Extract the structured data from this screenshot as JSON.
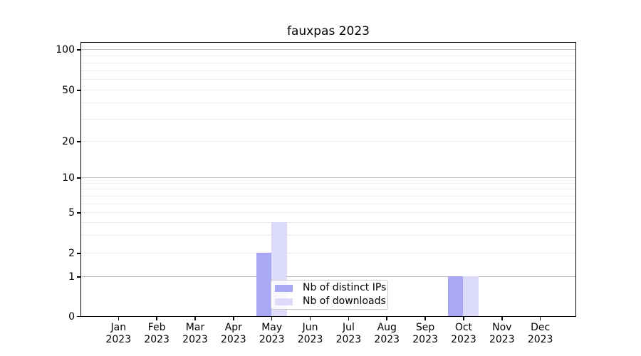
{
  "title": "fauxpas 2023",
  "chart_data": {
    "type": "bar",
    "title": "fauxpas 2023",
    "xlabel": "",
    "ylabel": "",
    "yscale": "symlog-like",
    "grid": "horizontal",
    "legend_position": "inside lower center",
    "categories": [
      "Jan 2023",
      "Feb 2023",
      "Mar 2023",
      "Apr 2023",
      "May 2023",
      "Jun 2023",
      "Jul 2023",
      "Aug 2023",
      "Sep 2023",
      "Oct 2023",
      "Nov 2023",
      "Dec 2023"
    ],
    "x_tick_months": [
      "Jan",
      "Feb",
      "Mar",
      "Apr",
      "May",
      "Jun",
      "Jul",
      "Aug",
      "Sep",
      "Oct",
      "Nov",
      "Dec"
    ],
    "x_tick_year": "2023",
    "series": [
      {
        "name": "Nb of distinct IPs",
        "color": "#a8a8f4",
        "values": [
          0,
          0,
          0,
          0,
          2,
          0,
          0,
          0,
          0,
          1,
          0,
          0
        ]
      },
      {
        "name": "Nb of downloads",
        "color": "#dcdcfa",
        "values": [
          0,
          0,
          0,
          0,
          4,
          0,
          0,
          0,
          0,
          1,
          0,
          0
        ]
      }
    ],
    "y_tick_values": [
      0,
      1,
      2,
      5,
      10,
      20,
      50,
      100
    ],
    "y_tick_labels": [
      "0",
      "1",
      "2",
      "5",
      "10",
      "20",
      "50",
      "100"
    ],
    "y_major_gridline_values": [
      1,
      10,
      100
    ],
    "y_minor_gridline_values": [
      2,
      3,
      4,
      5,
      6,
      7,
      8,
      9,
      20,
      30,
      40,
      50,
      60,
      70,
      80,
      90
    ],
    "ylim": [
      0,
      120
    ]
  },
  "colors": {
    "background": "#ffffff",
    "axis": "#000000",
    "text": "#000000",
    "grid_major": "#bdbdbd",
    "grid_minor": "#ececec",
    "legend_border": "#cccccc"
  },
  "legend": {
    "items": [
      {
        "label": "Nb of distinct IPs",
        "color": "#a8a8f4"
      },
      {
        "label": "Nb of downloads",
        "color": "#dcdcfa"
      }
    ]
  }
}
